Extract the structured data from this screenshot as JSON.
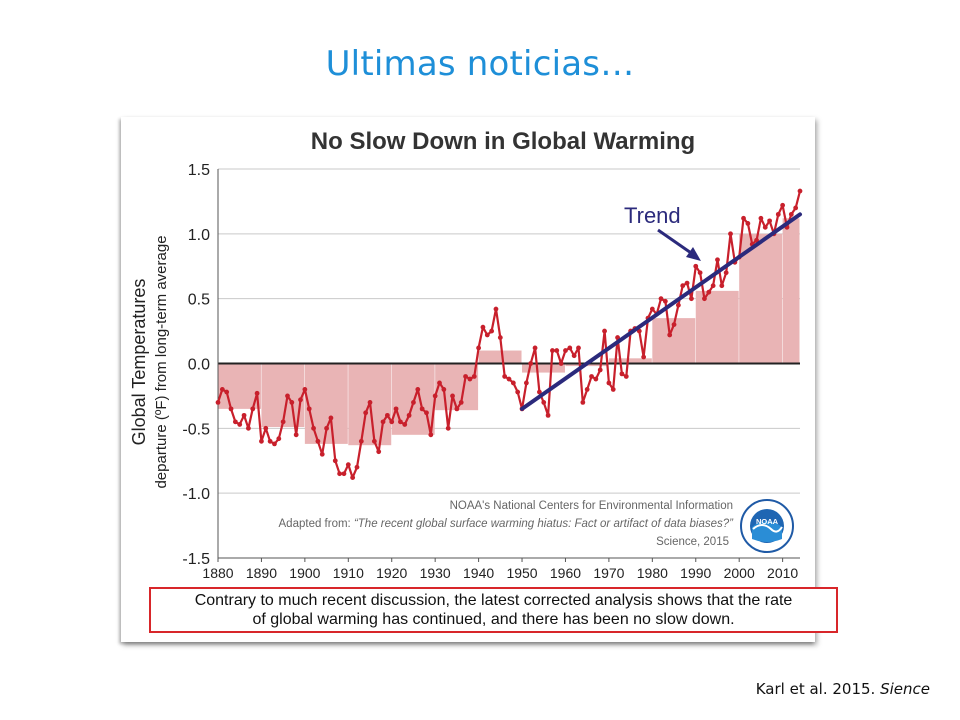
{
  "slide": {
    "title": "Ultimas noticias…",
    "citation_authors": "Karl et al. 2015.",
    "citation_journal": "Sience"
  },
  "caption": {
    "line1": "Contrary to much recent discussion, the latest corrected analysis shows that the rate",
    "line2": "of global warming has continued, and there has been no slow down."
  },
  "credits": {
    "line1": "NOAA's National Centers for Environmental Information",
    "line2_prefix": "Adapted from: ",
    "line2_quote": "“The recent global surface warming hiatus: Fact or artifact of data biases?”",
    "line3": "Science, 2015",
    "logo_text": "NOAA"
  },
  "colors": {
    "series": "#c8202c",
    "trend": "#2b2a7c",
    "decade_fill": "#e9b4b5",
    "title_blue": "#1e8fd8",
    "caption_border": "#d8262a"
  },
  "chart_data": {
    "type": "line",
    "title": "No Slow Down in Global Warming",
    "ylabel": "Global Temperatures",
    "ylabel_sub": "departure (ºF) from long-term average",
    "xlabel": "",
    "xlim": [
      1880,
      2014
    ],
    "ylim": [
      -1.5,
      1.5
    ],
    "grid": true,
    "x_ticks": [
      "1880",
      "1890",
      "1900",
      "1910",
      "1920",
      "1930",
      "1940",
      "1950",
      "1960",
      "1970",
      "1980",
      "1990",
      "2000",
      "2010"
    ],
    "y_ticks": [
      "1.5",
      "1.0",
      "0.5",
      "0.0",
      "-0.5",
      "-1.0",
      "-1.5"
    ],
    "annotation": "Trend",
    "series": [
      {
        "x": [
          1880,
          1881,
          1882,
          1883,
          1884,
          1885,
          1886,
          1887,
          1888,
          1889,
          1890,
          1891,
          1892,
          1893,
          1894,
          1895,
          1896,
          1897,
          1898,
          1899,
          1900,
          1901,
          1902,
          1903,
          1904,
          1905,
          1906,
          1907,
          1908,
          1909,
          1910,
          1911,
          1912,
          1913,
          1914,
          1915,
          1916,
          1917,
          1918,
          1919,
          1920,
          1921,
          1922,
          1923,
          1924,
          1925,
          1926,
          1927,
          1928,
          1929,
          1930,
          1931,
          1932,
          1933,
          1934,
          1935,
          1936,
          1937,
          1938,
          1939,
          1940,
          1941,
          1942,
          1943,
          1944,
          1945,
          1946,
          1947,
          1948,
          1949,
          1950,
          1951,
          1952,
          1953,
          1954,
          1955,
          1956,
          1957,
          1958,
          1959,
          1960,
          1961,
          1962,
          1963,
          1964,
          1965,
          1966,
          1967,
          1968,
          1969,
          1970,
          1971,
          1972,
          1973,
          1974,
          1975,
          1976,
          1977,
          1978,
          1979,
          1980,
          1981,
          1982,
          1983,
          1984,
          1985,
          1986,
          1987,
          1988,
          1989,
          1990,
          1991,
          1992,
          1993,
          1994,
          1995,
          1996,
          1997,
          1998,
          1999,
          2000,
          2001,
          2002,
          2003,
          2004,
          2005,
          2006,
          2007,
          2008,
          2009,
          2010,
          2011,
          2012,
          2013,
          2014
        ],
        "values": [
          -0.3,
          -0.2,
          -0.22,
          -0.35,
          -0.45,
          -0.47,
          -0.4,
          -0.5,
          -0.35,
          -0.23,
          -0.6,
          -0.5,
          -0.6,
          -0.62,
          -0.58,
          -0.45,
          -0.25,
          -0.3,
          -0.55,
          -0.28,
          -0.2,
          -0.35,
          -0.5,
          -0.6,
          -0.7,
          -0.5,
          -0.42,
          -0.75,
          -0.85,
          -0.85,
          -0.78,
          -0.88,
          -0.8,
          -0.6,
          -0.38,
          -0.3,
          -0.6,
          -0.68,
          -0.45,
          -0.4,
          -0.45,
          -0.35,
          -0.45,
          -0.47,
          -0.4,
          -0.3,
          -0.2,
          -0.35,
          -0.38,
          -0.55,
          -0.25,
          -0.15,
          -0.2,
          -0.5,
          -0.25,
          -0.35,
          -0.3,
          -0.1,
          -0.12,
          -0.1,
          0.12,
          0.28,
          0.22,
          0.25,
          0.42,
          0.2,
          -0.1,
          -0.12,
          -0.15,
          -0.22,
          -0.35,
          -0.15,
          0.0,
          0.12,
          -0.22,
          -0.3,
          -0.4,
          0.1,
          0.1,
          0.0,
          0.1,
          0.12,
          0.06,
          0.12,
          -0.3,
          -0.2,
          -0.1,
          -0.12,
          -0.05,
          0.25,
          -0.15,
          -0.2,
          0.2,
          -0.08,
          -0.1,
          0.25,
          0.27,
          0.25,
          0.05,
          0.35,
          0.42,
          0.38,
          0.5,
          0.48,
          0.22,
          0.3,
          0.45,
          0.6,
          0.62,
          0.5,
          0.75,
          0.7,
          0.5,
          0.55,
          0.6,
          0.8,
          0.6,
          0.7,
          1.0,
          0.78,
          0.82,
          1.12,
          1.08,
          0.92,
          0.95,
          1.12,
          1.05,
          1.1,
          1.0,
          1.15,
          1.22,
          1.05,
          1.15,
          1.2,
          1.33
        ]
      }
    ],
    "decadal": [
      {
        "start": 1880,
        "end": 1890,
        "value": -0.35
      },
      {
        "start": 1890,
        "end": 1900,
        "value": -0.49
      },
      {
        "start": 1900,
        "end": 1910,
        "value": -0.62
      },
      {
        "start": 1910,
        "end": 1920,
        "value": -0.63
      },
      {
        "start": 1920,
        "end": 1930,
        "value": -0.55
      },
      {
        "start": 1930,
        "end": 1940,
        "value": -0.36
      },
      {
        "start": 1940,
        "end": 1950,
        "value": 0.1
      },
      {
        "start": 1950,
        "end": 1960,
        "value": -0.07
      },
      {
        "start": 1960,
        "end": 1970,
        "value": -0.02
      },
      {
        "start": 1970,
        "end": 1980,
        "value": 0.04
      },
      {
        "start": 1980,
        "end": 1990,
        "value": 0.35
      },
      {
        "start": 1990,
        "end": 2000,
        "value": 0.56
      },
      {
        "start": 2000,
        "end": 2010,
        "value": 1.0
      },
      {
        "start": 2010,
        "end": 2014,
        "value": 1.12
      }
    ],
    "trend": {
      "x": [
        1950,
        2014
      ],
      "values": [
        -0.35,
        1.15
      ]
    }
  }
}
